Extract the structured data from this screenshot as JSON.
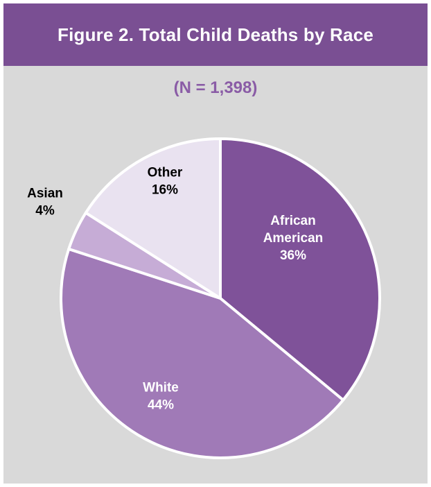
{
  "chart_data": {
    "type": "pie",
    "title": "Figure 2. Total Child Deaths by Race",
    "subtitle": "(N = 1,398)",
    "slices": [
      {
        "label": [
          "African",
          "American"
        ],
        "value": "36%",
        "percent": 36,
        "color": "#7f5299",
        "text_color": "#ffffff"
      },
      {
        "label": [
          "White"
        ],
        "value": "44%",
        "percent": 44,
        "color": "#a07ab7",
        "text_color": "#ffffff"
      },
      {
        "label": [
          "Asian"
        ],
        "value": "4%",
        "percent": 4,
        "color": "#c6acd6",
        "text_color": "#000000"
      },
      {
        "label": [
          "Other"
        ],
        "value": "16%",
        "percent": 16,
        "color": "#e9e2f0",
        "text_color": "#000000"
      }
    ]
  }
}
